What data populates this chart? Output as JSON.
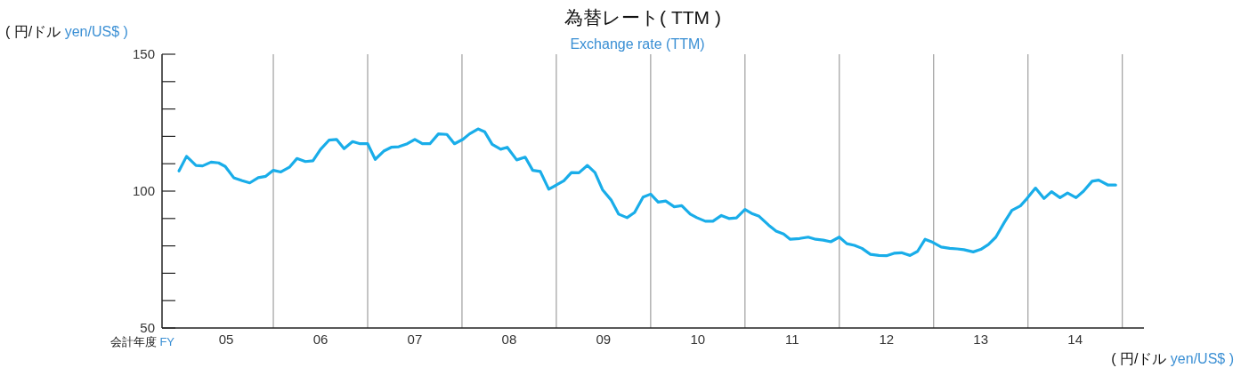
{
  "chart_data": {
    "type": "line",
    "title": "為替レート( TTM )",
    "subtitle": "Exchange rate (TTM)",
    "ylabel": "( 円/ドル yen/US$ )",
    "xlabel": "会計年度 FY",
    "annotations": [
      "( 円/ドル yen/US$ )"
    ],
    "xlim": [
      4.32,
      14.73
    ],
    "xticks": [
      {
        "value": 5,
        "label": "05"
      },
      {
        "value": 6,
        "label": "06"
      },
      {
        "value": 7,
        "label": "07"
      },
      {
        "value": 8,
        "label": "08"
      },
      {
        "value": 9,
        "label": "09"
      },
      10,
      11,
      12,
      13,
      14
    ],
    "ylim": [
      50,
      150
    ],
    "yticks": [
      50,
      {
        "value": 60,
        "label": null
      },
      {
        "value": 70,
        "label": null
      },
      {
        "value": 80,
        "label": null
      },
      {
        "value": 90,
        "label": null
      },
      100,
      {
        "value": 110,
        "label": null
      },
      {
        "value": 120,
        "label": null
      },
      {
        "value": 130,
        "label": null
      },
      {
        "value": 140,
        "label": null
      },
      150
    ],
    "ref_lines": [
      {
        "axis": "x",
        "value": 5.5,
        "color": "#a6a6a6"
      },
      {
        "axis": "x",
        "value": 6.5,
        "color": "#a6a6a6"
      },
      {
        "axis": "x",
        "value": 7.5,
        "color": "#a6a6a6"
      },
      {
        "axis": "x",
        "value": 8.5,
        "color": "#a6a6a6"
      },
      {
        "axis": "x",
        "value": 9.5,
        "color": "#a6a6a6"
      },
      {
        "axis": "x",
        "value": 10.5,
        "color": "#a6a6a6"
      },
      {
        "axis": "x",
        "value": 11.5,
        "color": "#a6a6a6"
      },
      {
        "axis": "x",
        "value": 12.5,
        "color": "#a6a6a6"
      },
      {
        "axis": "x",
        "value": 13.5,
        "color": "#a6a6a6"
      },
      {
        "axis": "x",
        "value": 14.5,
        "color": "#a6a6a6"
      }
    ],
    "marker": "none",
    "line_style": "solid",
    "series": [
      {
        "color": "#19ade9",
        "x": [
          4.5,
          4.58,
          4.68,
          4.75,
          4.84,
          4.92,
          4.99,
          5.08,
          5.17,
          5.25,
          5.34,
          5.42,
          5.5,
          5.58,
          5.67,
          5.75,
          5.84,
          5.92,
          6.0,
          6.09,
          6.17,
          6.25,
          6.34,
          6.42,
          6.5,
          6.58,
          6.67,
          6.75,
          6.83,
          6.92,
          7.0,
          7.08,
          7.16,
          7.25,
          7.34,
          7.42,
          7.51,
          7.58,
          7.67,
          7.74,
          7.82,
          7.91,
          7.98,
          8.08,
          8.17,
          8.25,
          8.33,
          8.42,
          8.5,
          8.58,
          8.66,
          8.74,
          8.83,
          8.91,
          8.99,
          9.08,
          9.16,
          9.25,
          9.33,
          9.42,
          9.5,
          9.58,
          9.66,
          9.75,
          9.83,
          9.92,
          9.99,
          10.08,
          10.16,
          10.25,
          10.33,
          10.41,
          10.5,
          10.58,
          10.65,
          10.75,
          10.83,
          10.91,
          10.98,
          11.08,
          11.17,
          11.25,
          11.33,
          11.41,
          11.5,
          11.58,
          11.66,
          11.74,
          11.83,
          11.92,
          12.0,
          12.08,
          12.16,
          12.25,
          12.33,
          12.41,
          12.49,
          12.58,
          12.67,
          12.75,
          12.82,
          12.92,
          13.0,
          13.08,
          13.16,
          13.25,
          13.33,
          13.42,
          13.49,
          13.58,
          13.67,
          13.75,
          13.84,
          13.92,
          14.01,
          14.09,
          14.18,
          14.25,
          14.35,
          14.43
        ],
        "values": [
          107.4,
          112.7,
          109.4,
          109.2,
          110.6,
          110.3,
          109.0,
          104.9,
          103.8,
          103.0,
          104.9,
          105.4,
          107.6,
          107.0,
          108.7,
          111.9,
          110.8,
          111.1,
          115.2,
          118.6,
          118.9,
          115.5,
          118.1,
          117.3,
          117.3,
          111.6,
          114.6,
          116.0,
          116.2,
          117.3,
          118.9,
          117.3,
          117.3,
          120.9,
          120.7,
          117.3,
          118.9,
          120.9,
          122.7,
          121.7,
          117.1,
          115.3,
          116.0,
          111.4,
          112.4,
          107.6,
          107.2,
          100.7,
          102.2,
          103.8,
          106.8,
          106.7,
          109.4,
          106.8,
          100.5,
          96.8,
          91.6,
          90.3,
          92.2,
          97.8,
          98.9,
          96.0,
          96.4,
          94.3,
          94.7,
          91.6,
          90.3,
          89.0,
          89.0,
          91.1,
          90.0,
          90.2,
          93.3,
          91.7,
          90.8,
          87.6,
          85.4,
          84.3,
          82.4,
          82.7,
          83.2,
          82.4,
          82.1,
          81.5,
          83.2,
          80.8,
          80.2,
          79.1,
          76.9,
          76.5,
          76.4,
          77.3,
          77.5,
          76.5,
          78.0,
          82.4,
          81.3,
          79.6,
          79.1,
          78.9,
          78.6,
          77.8,
          78.7,
          80.5,
          83.2,
          88.6,
          93.0,
          94.6,
          97.3,
          101.1,
          97.3,
          99.8,
          97.6,
          99.3,
          97.6,
          100.0,
          103.6,
          104.0,
          102.2,
          102.2
        ]
      }
    ]
  }
}
